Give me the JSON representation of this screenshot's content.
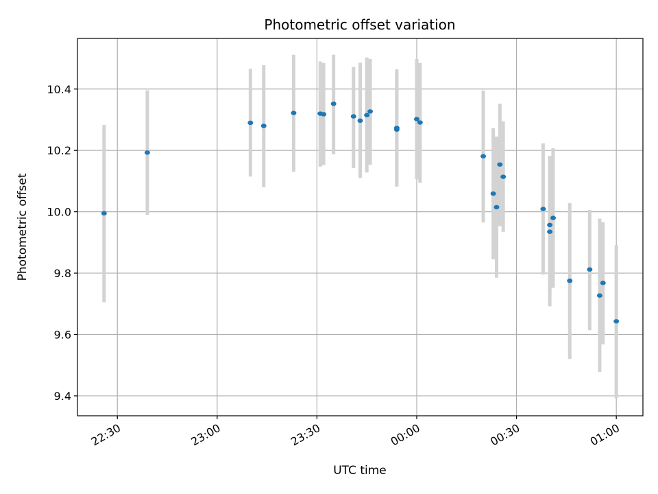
{
  "chart_data": {
    "type": "scatter",
    "title": "Photometric offset variation",
    "xlabel": "UTC time",
    "ylabel": "Photometric offset",
    "x_tick_labels": [
      "22:30",
      "23:00",
      "23:30",
      "00:00",
      "00:30",
      "01:00"
    ],
    "x_ticks": [
      "2000-01-01T22:30",
      "2000-01-01T23:00",
      "2000-01-01T23:30",
      "2000-01-02T00:00",
      "2000-01-02T00:30",
      "2000-01-02T01:00"
    ],
    "y_ticks": [
      9.4,
      9.6,
      9.8,
      10.0,
      10.2,
      10.4
    ],
    "y_tick_labels": [
      "9.4",
      "9.6",
      "9.8",
      "10.0",
      "10.2",
      "10.4"
    ],
    "xlim": [
      "2000-01-01T22:18",
      "2000-01-02T01:08"
    ],
    "ylim": [
      9.335,
      10.565
    ],
    "grid": true,
    "colors": {
      "point": "#1f77b4",
      "errorbar": "#d3d3d3",
      "grid": "#b0b0b0"
    },
    "series": [
      {
        "x": [
          "2000-01-01T22:26",
          "2000-01-01T22:39",
          "2000-01-01T23:10",
          "2000-01-01T23:14",
          "2000-01-01T23:23",
          "2000-01-01T23:31",
          "2000-01-01T23:32",
          "2000-01-01T23:35",
          "2000-01-01T23:41",
          "2000-01-01T23:43",
          "2000-01-01T23:45",
          "2000-01-01T23:46",
          "2000-01-01T23:54",
          "2000-01-01T23:54",
          "2000-01-02T00:00",
          "2000-01-02T00:01",
          "2000-01-02T00:20",
          "2000-01-02T00:23",
          "2000-01-02T00:24",
          "2000-01-02T00:25",
          "2000-01-02T00:26",
          "2000-01-02T00:38",
          "2000-01-02T00:40",
          "2000-01-02T00:40",
          "2000-01-02T00:41",
          "2000-01-02T00:46",
          "2000-01-02T00:52",
          "2000-01-02T00:55",
          "2000-01-02T00:56",
          "2000-01-02T01:00"
        ],
        "y": [
          9.995,
          10.193,
          10.29,
          10.28,
          10.322,
          10.32,
          10.318,
          10.352,
          10.311,
          10.297,
          10.315,
          10.327,
          10.268,
          10.273,
          10.302,
          10.291,
          10.181,
          10.059,
          10.015,
          10.154,
          10.114,
          10.009,
          9.957,
          9.935,
          9.98,
          9.775,
          9.812,
          9.727,
          9.768,
          9.643
        ],
        "yerr_low": [
          9.705,
          9.99,
          10.115,
          10.08,
          10.13,
          10.147,
          10.152,
          10.187,
          10.142,
          10.11,
          10.128,
          10.153,
          10.082,
          10.082,
          10.106,
          10.094,
          9.965,
          9.845,
          9.785,
          9.953,
          9.935,
          9.795,
          9.735,
          9.692,
          9.752,
          9.52,
          9.614,
          9.478,
          9.568,
          9.392
        ],
        "yerr_high": [
          10.283,
          10.396,
          10.466,
          10.478,
          10.512,
          10.49,
          10.485,
          10.512,
          10.472,
          10.486,
          10.503,
          10.498,
          10.456,
          10.464,
          10.498,
          10.485,
          10.395,
          10.272,
          10.245,
          10.352,
          10.295,
          10.223,
          10.178,
          10.182,
          10.207,
          10.028,
          10.006,
          9.978,
          9.966,
          9.891
        ]
      }
    ]
  }
}
